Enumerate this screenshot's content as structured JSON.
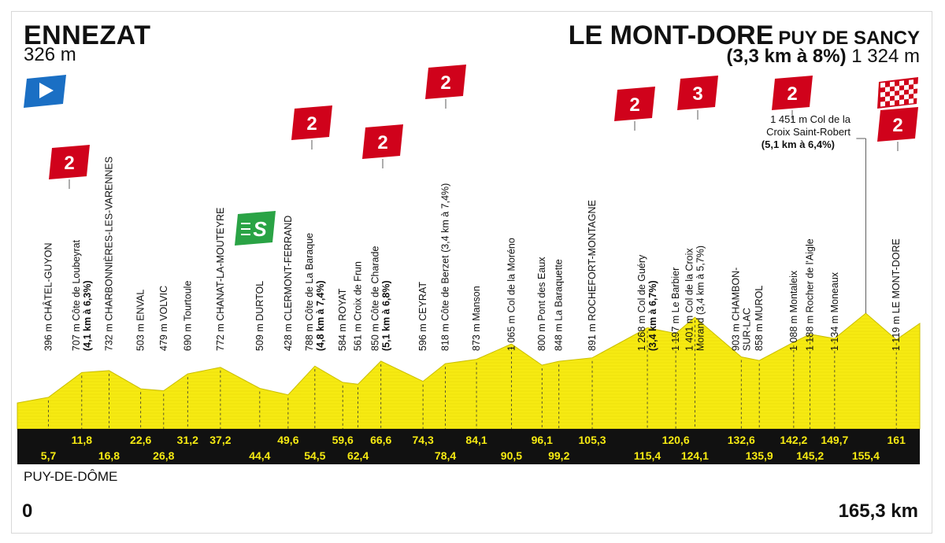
{
  "start": {
    "name": "ENNEZAT",
    "altitude": "326 m"
  },
  "finish": {
    "name": "LE MONT-DORE",
    "subtitle": "PUY DE SANCY",
    "climb": "(3,3 km à 8%)",
    "altitude": "1 324 m"
  },
  "department": "PUY-DE-DÔME",
  "km_start": "0",
  "km_end": "165,3 km",
  "colors": {
    "profile_yellow": "#f6ea12",
    "km_bar": "#111111",
    "climb_red": "#d0021b",
    "start_blue": "#1a6fc4",
    "sprint_green": "#2aa345"
  },
  "km_upper": [
    {
      "label": "11,8",
      "km": 11.8
    },
    {
      "label": "22,6",
      "km": 22.6
    },
    {
      "label": "31,2",
      "km": 31.2
    },
    {
      "label": "37,2",
      "km": 37.2
    },
    {
      "label": "49,6",
      "km": 49.6
    },
    {
      "label": "59,6",
      "km": 59.6
    },
    {
      "label": "66,6",
      "km": 66.6
    },
    {
      "label": "74,3",
      "km": 74.3
    },
    {
      "label": "84,1",
      "km": 84.1
    },
    {
      "label": "96,1",
      "km": 96.1
    },
    {
      "label": "105,3",
      "km": 105.3
    },
    {
      "label": "120,6",
      "km": 120.6
    },
    {
      "label": "132,6",
      "km": 132.6
    },
    {
      "label": "142,2",
      "km": 142.2
    },
    {
      "label": "149,7",
      "km": 149.7
    },
    {
      "label": "161",
      "km": 161
    }
  ],
  "km_lower": [
    {
      "label": "5,7",
      "km": 5.7
    },
    {
      "label": "16,8",
      "km": 16.8
    },
    {
      "label": "26,8",
      "km": 26.8
    },
    {
      "label": "44,4",
      "km": 44.4
    },
    {
      "label": "54,5",
      "km": 54.5
    },
    {
      "label": "62,4",
      "km": 62.4
    },
    {
      "label": "78,4",
      "km": 78.4
    },
    {
      "label": "90,5",
      "km": 90.5
    },
    {
      "label": "99,2",
      "km": 99.2
    },
    {
      "label": "115,4",
      "km": 115.4
    },
    {
      "label": "124,1",
      "km": 124.1
    },
    {
      "label": "135,9",
      "km": 135.9
    },
    {
      "label": "145,2",
      "km": 145.2
    },
    {
      "label": "155,4",
      "km": 155.4
    }
  ],
  "places": [
    {
      "km": 5.7,
      "alt": 396,
      "lines": [
        "396 m  CHÂTEL-GUYON"
      ]
    },
    {
      "km": 11.8,
      "alt": 707,
      "lines": [
        "707 m  Côte de Loubeyrat",
        "(4,1 km à 6,3%)"
      ]
    },
    {
      "km": 16.8,
      "alt": 732,
      "lines": [
        "732 m  CHARBONNIÈRES-LES-VARENNES"
      ]
    },
    {
      "km": 22.6,
      "alt": 503,
      "lines": [
        "503 m  ENVAL"
      ]
    },
    {
      "km": 26.8,
      "alt": 479,
      "lines": [
        "479 m  VOLVIC"
      ]
    },
    {
      "km": 31.2,
      "alt": 690,
      "lines": [
        "690 m  Tourtoule"
      ]
    },
    {
      "km": 37.2,
      "alt": 772,
      "lines": [
        "772 m  CHANAT-LA-MOUTEYRE"
      ]
    },
    {
      "km": 44.4,
      "alt": 509,
      "lines": [
        "509 m  DURTOL"
      ]
    },
    {
      "km": 49.6,
      "alt": 428,
      "lines": [
        "428 m  CLERMONT-FERRAND"
      ]
    },
    {
      "km": 54.5,
      "alt": 788,
      "lines": [
        "788 m  Côte de La Baraque",
        "(4,8 km à 7,4%)"
      ]
    },
    {
      "km": 59.6,
      "alt": 584,
      "lines": [
        "584 m  ROYAT"
      ]
    },
    {
      "km": 62.4,
      "alt": 561,
      "lines": [
        "561 m  Croix de Frun"
      ]
    },
    {
      "km": 66.6,
      "alt": 850,
      "lines": [
        "850 m  Côte de Charade",
        "(5,1 km à 6,8%)"
      ]
    },
    {
      "km": 74.3,
      "alt": 596,
      "lines": [
        "596 m  CEYRAT"
      ]
    },
    {
      "km": 78.4,
      "alt": 818,
      "lines": [
        "818 m  Côte de Berzet (3,4 km à 7,4%)"
      ]
    },
    {
      "km": 84.1,
      "alt": 873,
      "lines": [
        "873 m  Manson"
      ]
    },
    {
      "km": 90.5,
      "alt": 1065,
      "lines": [
        "1 065 m  Col de la Moréno"
      ]
    },
    {
      "km": 96.1,
      "alt": 800,
      "lines": [
        "800 m  Pont des Eaux"
      ]
    },
    {
      "km": 99.2,
      "alt": 848,
      "lines": [
        "848 m  La Baraquette"
      ]
    },
    {
      "km": 105.3,
      "alt": 891,
      "lines": [
        "891 m  ROCHEFORT-MONTAGNE"
      ]
    },
    {
      "km": 115.4,
      "alt": 1268,
      "lines": [
        "1 268 m  Col de Guéry",
        "(3,4 km à 6,7%)"
      ]
    },
    {
      "km": 120.6,
      "alt": 1197,
      "lines": [
        "1 197 m  Le Barbier"
      ]
    },
    {
      "km": 124.1,
      "alt": 1401,
      "lines": [
        "1 401 m  Col de la Croix",
        "Morand (3,4 km à 5,7%)"
      ]
    },
    {
      "km": 132.6,
      "alt": 903,
      "lines": [
        "903 m  CHAMBON-",
        "SUR-LAC"
      ]
    },
    {
      "km": 135.9,
      "alt": 858,
      "lines": [
        "858 m  MUROL"
      ]
    },
    {
      "km": 142.2,
      "alt": 1088,
      "lines": [
        "1 088 m  Montaleix"
      ]
    },
    {
      "km": 145.2,
      "alt": 1188,
      "lines": [
        "1 188 m  Rocher de l'Aigle"
      ]
    },
    {
      "km": 149.7,
      "alt": 1134,
      "lines": [
        "1 134 m  Moneaux"
      ]
    },
    {
      "km": 161,
      "alt": 1119,
      "lines": [
        "1 119 m  LE MONT-DORE"
      ]
    }
  ],
  "croix_saint_robert": {
    "km": 155.4,
    "alt": 1451,
    "lines": [
      "1 451 m  Col de la",
      "Croix Saint-Robert",
      "(5,1 km à 6,4%)"
    ]
  },
  "climb_badges": [
    {
      "cat": "2",
      "km": 11.8
    },
    {
      "cat": "2",
      "km": 54.5
    },
    {
      "cat": "2",
      "km": 66.6
    },
    {
      "cat": "2",
      "km": 78.4
    },
    {
      "cat": "2",
      "km": 115.4
    },
    {
      "cat": "3",
      "km": 124.1
    },
    {
      "cat": "2",
      "km": 142.2
    },
    {
      "cat": "2",
      "km": 165.3
    }
  ],
  "sprint": {
    "label": "S",
    "km": 44.4
  }
}
